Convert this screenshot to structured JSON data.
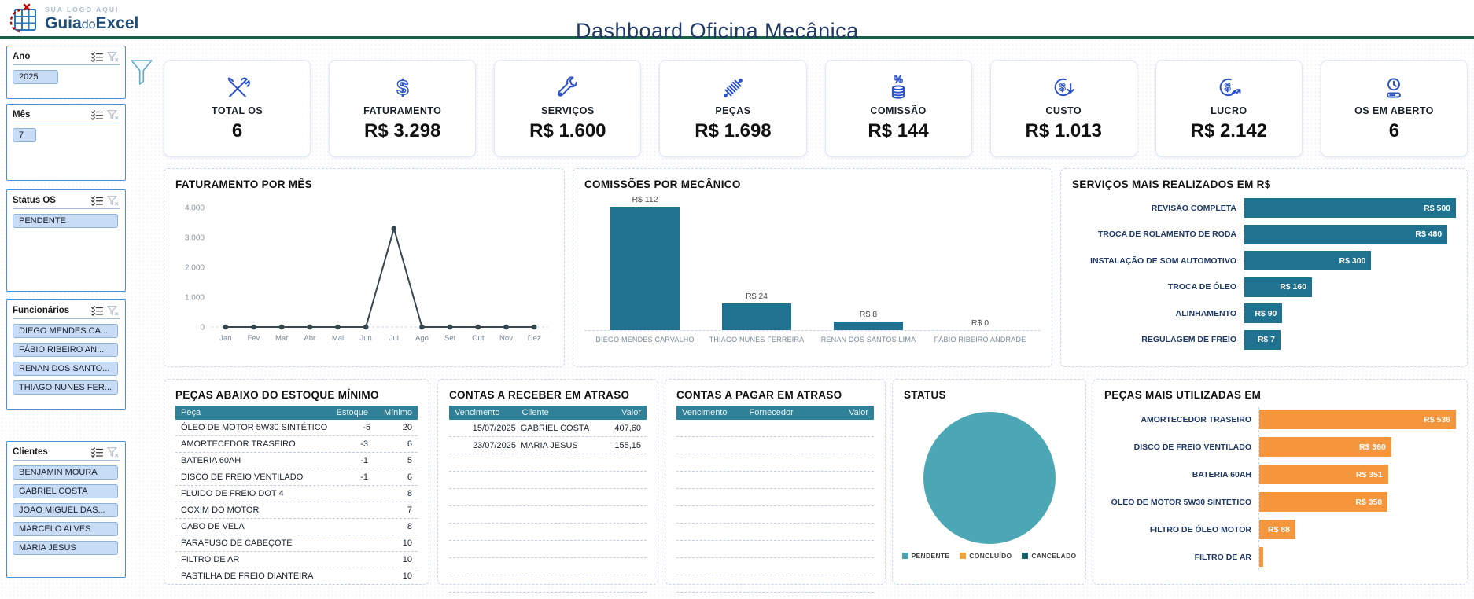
{
  "header": {
    "logo_tagline": "SUA LOGO AQUI",
    "logo_brand": {
      "part1": "Guia",
      "part2": "do",
      "part3": "Excel"
    },
    "title": "Dashboard Oficina Mecânica"
  },
  "slicers": [
    {
      "title": "Ano",
      "items": [
        "2025"
      ]
    },
    {
      "title": "Mês",
      "items": [
        "7"
      ]
    },
    {
      "title": "Status OS",
      "items": [
        "PENDENTE"
      ]
    },
    {
      "title": "Funcionários",
      "items": [
        "DIEGO MENDES CA...",
        "FÁBIO RIBEIRO AN...",
        "RENAN DOS SANTO...",
        "THIAGO NUNES FER..."
      ]
    },
    {
      "title": "Clientes",
      "items": [
        "BENJAMIN MOURA",
        "GABRIEL COSTA",
        "JOAO MIGUEL DAS...",
        "MARCELO ALVES",
        "MARIA JESUS"
      ]
    }
  ],
  "kpis": [
    {
      "label": "TOTAL OS",
      "value": "6",
      "icon": "tools-crossed-icon"
    },
    {
      "label": "FATURAMENTO",
      "value": "R$ 3.298",
      "icon": "dollar-icon"
    },
    {
      "label": "SERVIÇOS",
      "value": "R$ 1.600",
      "icon": "wrench-icon"
    },
    {
      "label": "PEÇAS",
      "value": "R$ 1.698",
      "icon": "shock-absorber-icon"
    },
    {
      "label": "COMISSÃO",
      "value": "R$ 144",
      "icon": "percent-coins-icon"
    },
    {
      "label": "CUSTO",
      "value": "R$ 1.013",
      "icon": "dollar-down-icon"
    },
    {
      "label": "LUCRO",
      "value": "R$ 2.142",
      "icon": "dollar-up-icon"
    },
    {
      "label": "OS EM ABERTO",
      "value": "6",
      "icon": "clock-icon"
    }
  ],
  "chart_data": [
    {
      "id": "faturamento_mes",
      "type": "line",
      "title": "FATURAMENTO POR MÊS",
      "x": [
        "Jan",
        "Fev",
        "Mar",
        "Abr",
        "Mai",
        "Jun",
        "Jul",
        "Ago",
        "Set",
        "Out",
        "Nov",
        "Dez"
      ],
      "values": [
        0,
        0,
        0,
        0,
        0,
        0,
        3298,
        0,
        0,
        0,
        0,
        0
      ],
      "ylim": [
        0,
        4000
      ],
      "yticks": [
        0,
        1000,
        2000,
        3000,
        4000
      ],
      "ytick_labels": [
        "0",
        "1.000",
        "2.000",
        "3.000",
        "4.000"
      ],
      "line_color": "#37474F",
      "grid": false,
      "legend_position": "none"
    },
    {
      "id": "comissoes_mecanico",
      "type": "bar",
      "title": "COMISSÕES POR MECÂNICO",
      "categories": [
        "DIEGO MENDES CARVALHO",
        "THIAGO NUNES FERREIRA",
        "RENAN DOS SANTOS LIMA",
        "FÁBIO RIBEIRO ANDRADE"
      ],
      "values": [
        112,
        24,
        8,
        0
      ],
      "labels": [
        "R$ 112",
        "R$ 24",
        "R$ 8",
        "R$ 0"
      ],
      "ylim": [
        0,
        120
      ],
      "bar_color": "#1F7391",
      "grid": false,
      "legend_position": "none"
    },
    {
      "id": "servicos_mais_realizados",
      "type": "hbar",
      "title": "SERVIÇOS MAIS REALIZADOS EM R$",
      "categories": [
        "REVISÃO COMPLETA",
        "TROCA DE ROLAMENTO DE RODA",
        "INSTALAÇÃO DE SOM AUTOMOTIVO",
        "TROCA DE ÓLEO",
        "ALINHAMENTO",
        "REGULAGEM DE FREIO"
      ],
      "values": [
        500,
        480,
        300,
        160,
        90,
        7
      ],
      "labels": [
        "R$ 500",
        "R$ 480",
        "R$ 300",
        "R$ 160",
        "R$ 90",
        "R$ 7"
      ],
      "xlim": [
        0,
        500
      ],
      "bar_color": "#1F7391",
      "grid": false,
      "legend_position": "none"
    },
    {
      "id": "status",
      "type": "pie",
      "title": "STATUS",
      "slices": [
        {
          "label": "PENDENTE",
          "value": 100,
          "color": "#4BA7B3"
        },
        {
          "label": "CONCLUÍDO",
          "value": 0,
          "color": "#F2A33C"
        },
        {
          "label": "CANCELADO",
          "value": 0,
          "color": "#16616B"
        }
      ],
      "legend_position": "bottom"
    },
    {
      "id": "pecas_mais_utilizadas",
      "type": "hbar",
      "title": "PEÇAS MAIS UTILIZADAS EM",
      "categories": [
        "AMORTECEDOR TRASEIRO",
        "DISCO DE FREIO VENTILADO",
        "BATERIA 60AH",
        "ÓLEO DE MOTOR 5W30 SINTÉTICO",
        "FILTRO DE ÓLEO MOTOR",
        "FILTRO DE AR"
      ],
      "values": [
        536,
        360,
        351,
        350,
        88,
        10
      ],
      "labels": [
        "R$ 536",
        "R$ 360",
        "R$ 351",
        "R$ 350",
        "R$ 88",
        ""
      ],
      "xlim": [
        0,
        536
      ],
      "bar_color": "#F5953C",
      "grid": false,
      "legend_position": "none"
    }
  ],
  "tables": {
    "pecas": {
      "title": "PEÇAS ABAIXO DO ESTOQUE MÍNIMO",
      "headers": [
        "Peça",
        "Estoque",
        "Mínimo"
      ],
      "rows": [
        [
          "ÓLEO DE MOTOR 5W30 SINTÉTICO",
          "-5",
          "20"
        ],
        [
          "AMORTECEDOR TRASEIRO",
          "-3",
          "6"
        ],
        [
          "BATERIA 60AH",
          "-1",
          "5"
        ],
        [
          "DISCO DE FREIO VENTILADO",
          "-1",
          "6"
        ],
        [
          "FLUIDO DE FREIO DOT 4",
          "",
          "8"
        ],
        [
          "COXIM DO MOTOR",
          "",
          "7"
        ],
        [
          "CABO DE VELA",
          "",
          "8"
        ],
        [
          "PARAFUSO DE CABEÇOTE",
          "",
          "10"
        ],
        [
          "FILTRO DE AR",
          "",
          "10"
        ],
        [
          "PASTILHA DE FREIO DIANTEIRA",
          "",
          "10"
        ]
      ],
      "empty_rows": 0
    },
    "receber": {
      "title": "CONTAS A RECEBER EM ATRASO",
      "headers": [
        "Vencimento",
        "Cliente",
        "Valor"
      ],
      "rows": [
        [
          "15/07/2025",
          "GABRIEL COSTA",
          "407,60"
        ],
        [
          "23/07/2025",
          "MARIA JESUS",
          "155,15"
        ]
      ],
      "empty_rows": 8
    },
    "pagar": {
      "title": "CONTAS A PAGAR EM ATRASO",
      "headers": [
        "Vencimento",
        "Fornecedor",
        "Valor"
      ],
      "rows": [],
      "empty_rows": 10
    }
  },
  "colors": {
    "teal_bar": "#1F7391",
    "table_header_teal": "#2E8196",
    "pie_pendente_teal": "#4BA7B3",
    "orange_bar": "#F5953C",
    "kpi_icon_blue": "#2B52C8",
    "header_green": "#1C5F46",
    "title_navy": "#1F3864",
    "slicer_border_blue": "#4E8FD0",
    "slicer_item_fill": "#C9DCF5"
  }
}
